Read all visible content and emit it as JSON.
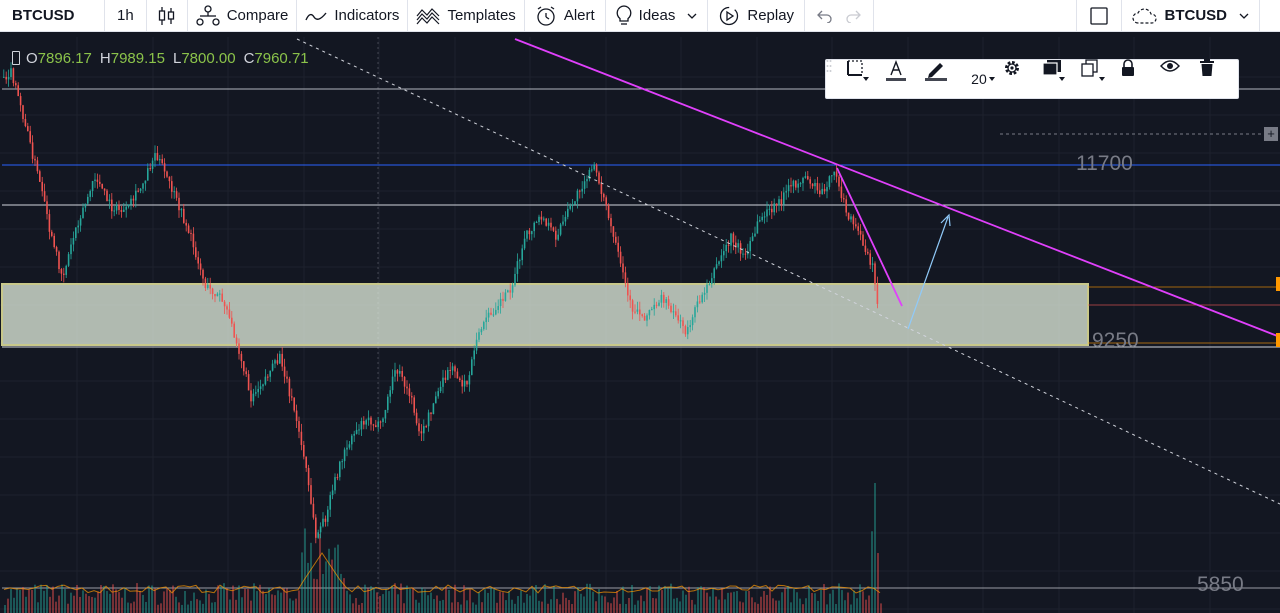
{
  "toolbar": {
    "symbol": "BTCUSD",
    "interval": "1h",
    "compare_label": "Compare",
    "indicators_label": "Indicators",
    "templates_label": "Templates",
    "alert_label": "Alert",
    "ideas_label": "Ideas",
    "replay_label": "Replay",
    "right_symbol": "BTCUSD"
  },
  "ohlc": {
    "o_key": "O",
    "o_val": "7896.17",
    "h_key": "H",
    "h_val": "7989.15",
    "l_key": "L",
    "l_val": "7800.00",
    "c_key": "C",
    "c_val": "7960.71"
  },
  "drawing_toolbar": {
    "font_size": "20"
  },
  "chart_data": {
    "type": "candlestick",
    "symbol": "BTCUSD",
    "interval": "1h",
    "price_annotations": [
      "11700",
      "9250",
      "5850"
    ],
    "support_zone": [
      9250,
      9750
    ],
    "colors": {
      "up": "#26a69a",
      "down": "#ef5350",
      "trendline": "#e040fb",
      "zone": "#dde8d8"
    }
  },
  "price_labels": {
    "upper": "11700",
    "middle": "9250",
    "lower": "5850"
  },
  "plus_button": "+"
}
